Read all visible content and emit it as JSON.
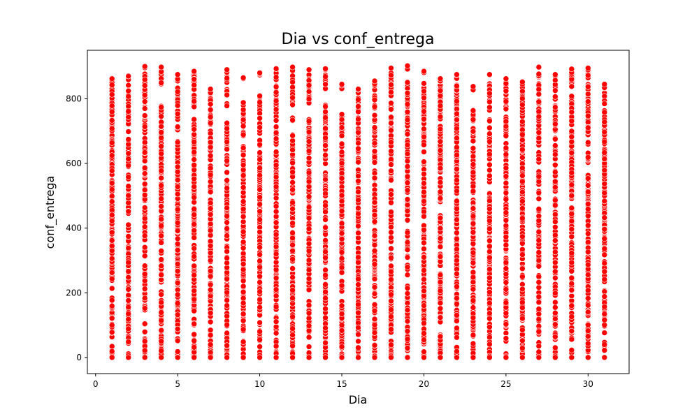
{
  "chart_data": {
    "type": "scatter",
    "title": "Dia vs conf_entrega",
    "xlabel": "Dia",
    "ylabel": "conf_entrega",
    "xlim": [
      -0.5,
      32.5
    ],
    "ylim": [
      -50,
      950
    ],
    "x_ticks": [
      0,
      5,
      10,
      15,
      20,
      25,
      30
    ],
    "y_ticks": [
      0,
      200,
      400,
      600,
      800
    ],
    "grid": false,
    "legend": "none",
    "point_color": "#ff0000",
    "point_edge_color": "#ffffff",
    "x": [
      1,
      2,
      3,
      4,
      5,
      6,
      7,
      8,
      9,
      10,
      11,
      12,
      13,
      14,
      15,
      16,
      17,
      18,
      19,
      20,
      21,
      22,
      23,
      24,
      25,
      26,
      27,
      28,
      29,
      30,
      31
    ],
    "y_ranges": [
      {
        "x": 1,
        "min": 0,
        "max": 862,
        "gaps": []
      },
      {
        "x": 2,
        "min": 0,
        "max": 870,
        "gaps": []
      },
      {
        "x": 3,
        "min": 0,
        "max": 900,
        "gaps": []
      },
      {
        "x": 4,
        "min": 0,
        "max": 898,
        "gaps": [
          [
            780,
            840
          ]
        ]
      },
      {
        "x": 5,
        "min": 0,
        "max": 875,
        "gaps": []
      },
      {
        "x": 6,
        "min": 0,
        "max": 885,
        "gaps": []
      },
      {
        "x": 7,
        "min": 0,
        "max": 830,
        "gaps": []
      },
      {
        "x": 8,
        "min": 0,
        "max": 890,
        "gaps": [
          [
            730,
            760
          ]
        ]
      },
      {
        "x": 9,
        "min": 0,
        "max": 865,
        "gaps": [
          [
            790,
            850
          ]
        ]
      },
      {
        "x": 10,
        "min": 0,
        "max": 880,
        "gaps": [
          [
            810,
            870
          ]
        ]
      },
      {
        "x": 11,
        "min": 0,
        "max": 893,
        "gaps": []
      },
      {
        "x": 12,
        "min": 0,
        "max": 898,
        "gaps": [
          [
            690,
            730
          ]
        ]
      },
      {
        "x": 13,
        "min": 0,
        "max": 890,
        "gaps": [
          [
            740,
            780
          ]
        ]
      },
      {
        "x": 14,
        "min": 0,
        "max": 893,
        "gaps": [
          [
            790,
            830
          ]
        ]
      },
      {
        "x": 15,
        "min": 0,
        "max": 845,
        "gaps": [
          [
            760,
            830
          ]
        ]
      },
      {
        "x": 16,
        "min": 0,
        "max": 830,
        "gaps": []
      },
      {
        "x": 17,
        "min": 0,
        "max": 855,
        "gaps": []
      },
      {
        "x": 18,
        "min": 0,
        "max": 895,
        "gaps": []
      },
      {
        "x": 19,
        "min": 0,
        "max": 902,
        "gaps": []
      },
      {
        "x": 20,
        "min": 0,
        "max": 885,
        "gaps": []
      },
      {
        "x": 21,
        "min": 0,
        "max": 862,
        "gaps": [
          [
            440,
            480
          ],
          [
            70,
            100
          ]
        ]
      },
      {
        "x": 22,
        "min": 0,
        "max": 875,
        "gaps": []
      },
      {
        "x": 23,
        "min": 0,
        "max": 838,
        "gaps": [
          [
            770,
            825
          ]
        ]
      },
      {
        "x": 24,
        "min": 0,
        "max": 875,
        "gaps": []
      },
      {
        "x": 25,
        "min": 0,
        "max": 862,
        "gaps": []
      },
      {
        "x": 26,
        "min": 0,
        "max": 852,
        "gaps": []
      },
      {
        "x": 27,
        "min": 0,
        "max": 898,
        "gaps": []
      },
      {
        "x": 28,
        "min": 0,
        "max": 875,
        "gaps": []
      },
      {
        "x": 29,
        "min": 0,
        "max": 892,
        "gaps": []
      },
      {
        "x": 30,
        "min": 0,
        "max": 895,
        "gaps": []
      },
      {
        "x": 31,
        "min": 0,
        "max": 845,
        "gaps": [
          [
            50,
            75
          ]
        ]
      }
    ]
  }
}
